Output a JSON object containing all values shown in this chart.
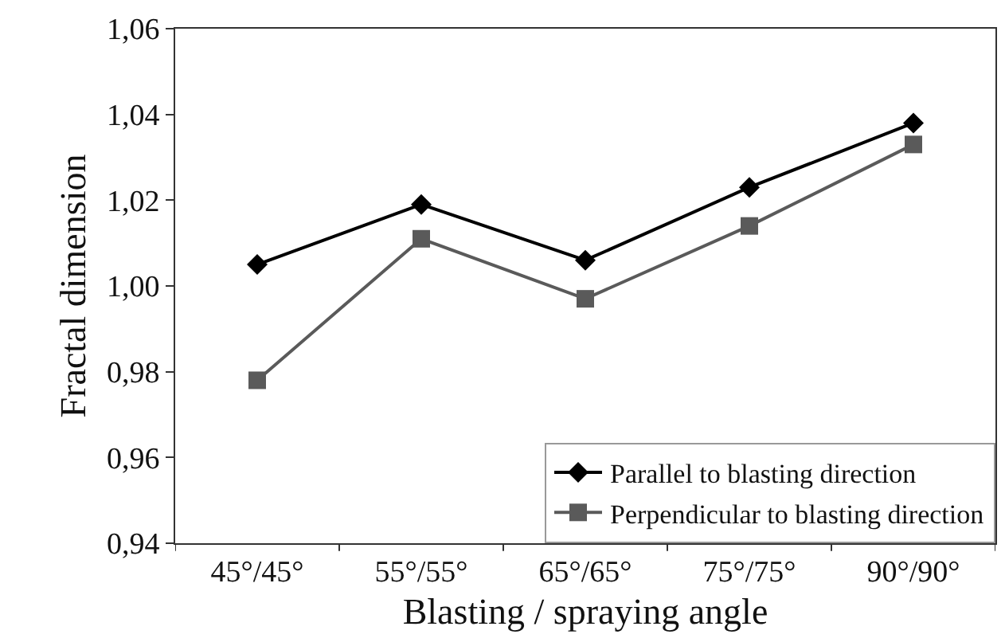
{
  "chart_data": {
    "type": "line",
    "xlabel": "Blasting / spraying angle",
    "ylabel": "Fractal dimension",
    "categories": [
      "45°/45°",
      "55°/55°",
      "65°/65°",
      "75°/75°",
      "90°/90°"
    ],
    "series": [
      {
        "name": "Parallel to blasting direction",
        "color": "#000000",
        "marker": "diamond",
        "values": [
          1.005,
          1.019,
          1.006,
          1.023,
          1.038
        ]
      },
      {
        "name": "Perpendicular to blasting direction",
        "color": "#5a5a5a",
        "marker": "square",
        "values": [
          0.978,
          1.011,
          0.997,
          1.014,
          1.033
        ]
      }
    ],
    "ylim": [
      0.94,
      1.06
    ],
    "yticks": [
      {
        "value": 0.94,
        "label": "0,94"
      },
      {
        "value": 0.96,
        "label": "0,96"
      },
      {
        "value": 0.98,
        "label": "0,98"
      },
      {
        "value": 1.0,
        "label": "1,00"
      },
      {
        "value": 1.02,
        "label": "1,02"
      },
      {
        "value": 1.04,
        "label": "1,04"
      },
      {
        "value": 1.06,
        "label": "1,06"
      }
    ],
    "legend": "bottom right",
    "line_style": "solid"
  }
}
